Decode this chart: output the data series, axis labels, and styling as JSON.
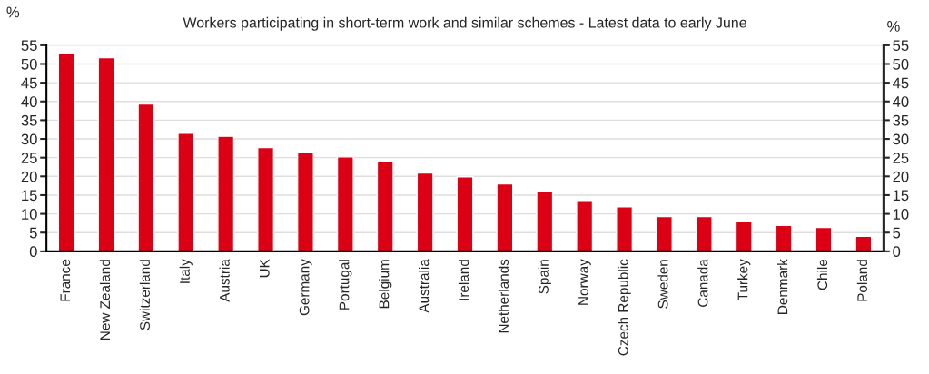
{
  "chart_data": {
    "type": "bar",
    "title": "Workers participating in short-term work and similar schemes - Latest data to early June",
    "ylabel": "%",
    "y2label": "%",
    "categories": [
      "France",
      "New Zealand",
      "Switzerland",
      "Italy",
      "Austria",
      "UK",
      "Germany",
      "Portugal",
      "Belgium",
      "Australia",
      "Ireland",
      "Netherlands",
      "Spain",
      "Norway",
      "Czech Republic",
      "Sweden",
      "Canada",
      "Turkey",
      "Denmark",
      "Chile",
      "Poland"
    ],
    "series": [
      {
        "color": "#dc0014",
        "values": [
          52.9,
          51.7,
          39.3,
          31.5,
          30.7,
          27.7,
          26.5,
          25.2,
          23.9,
          20.9,
          19.9,
          18.0,
          16.1,
          13.6,
          11.9,
          9.3,
          9.3,
          7.9,
          6.9,
          6.4,
          4.0
        ]
      }
    ],
    "ylim": [
      0,
      55
    ],
    "yticks": [
      0,
      5,
      10,
      15,
      20,
      25,
      30,
      35,
      40,
      45,
      50,
      55
    ],
    "y2lim": [
      0,
      55
    ],
    "y2ticks": [
      0,
      5,
      10,
      15,
      20,
      25,
      30,
      35,
      40,
      45,
      50,
      55
    ],
    "grid": "y",
    "legend": false
  }
}
